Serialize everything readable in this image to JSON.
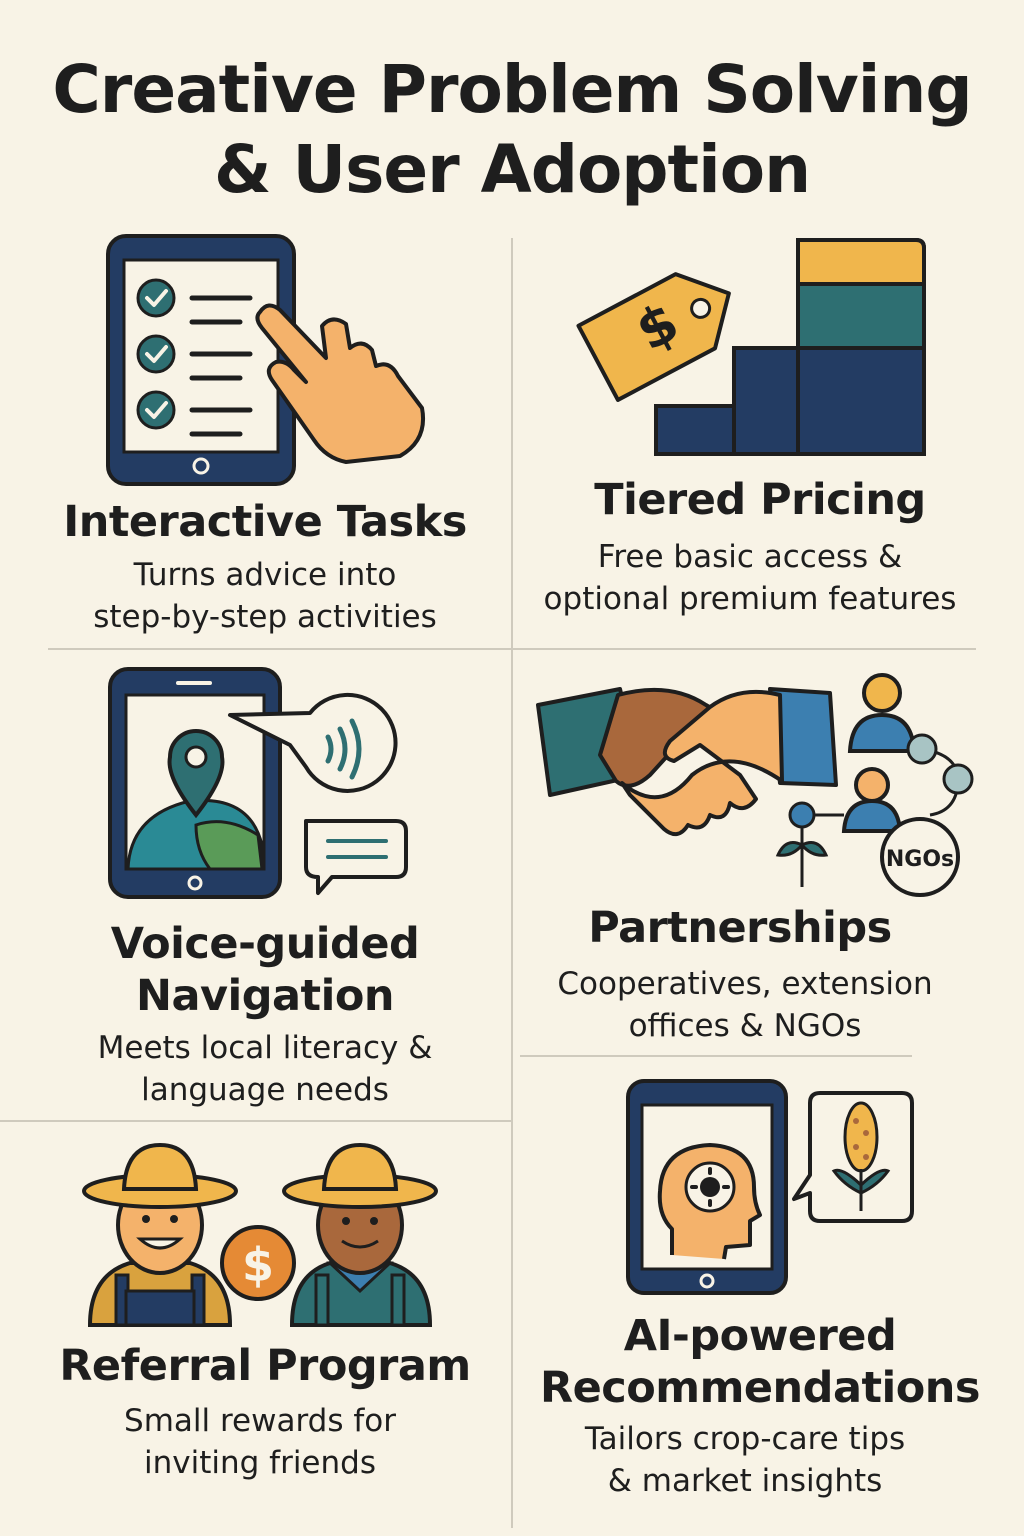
{
  "title_line1": "Creative Problem Solving",
  "title_line2": "& User Adoption",
  "colors": {
    "navy": "#233c63",
    "teal": "#2e6f72",
    "mustard": "#f0b64c",
    "skin": "#f4b26b",
    "brown": "#a9683c",
    "green": "#5a9b58",
    "orange": "#e58a35",
    "background": "#f8f3e6"
  },
  "cards": [
    {
      "id": "interactive-tasks",
      "icon": "tablet-checklist-tap-icon",
      "heading": "Interactive Tasks",
      "desc_line1": "Turns advice into",
      "desc_line2": "step-by-step activities"
    },
    {
      "id": "tiered-pricing",
      "icon": "price-tag-stairs-icon",
      "heading": "Tiered Pricing",
      "desc_line1": "Free basic access &",
      "desc_line2": "optional premium features"
    },
    {
      "id": "voice-navigation",
      "icon": "tablet-map-voice-icon",
      "heading_line1": "Voice-guided",
      "heading_line2": "Navigation",
      "desc_line1": "Meets local literacy &",
      "desc_line2": "language needs"
    },
    {
      "id": "partnerships",
      "icon": "handshake-network-icon",
      "heading": "Partnerships",
      "desc_line1": "Cooperatives, extension",
      "desc_line2": "offices & NGOs",
      "badge": "NGOs"
    },
    {
      "id": "referral-program",
      "icon": "farmers-reward-icon",
      "heading": "Referral Program",
      "desc_line1": "Small rewards for",
      "desc_line2": "inviting friends",
      "currency": "$"
    },
    {
      "id": "ai-recommendations",
      "icon": "tablet-ai-corn-icon",
      "heading_line1": "AI-powered",
      "heading_line2": "Recommendations",
      "desc_line1": "Tailors crop-care tips",
      "desc_line2": "& market insights"
    }
  ],
  "pricing_symbol": "$"
}
